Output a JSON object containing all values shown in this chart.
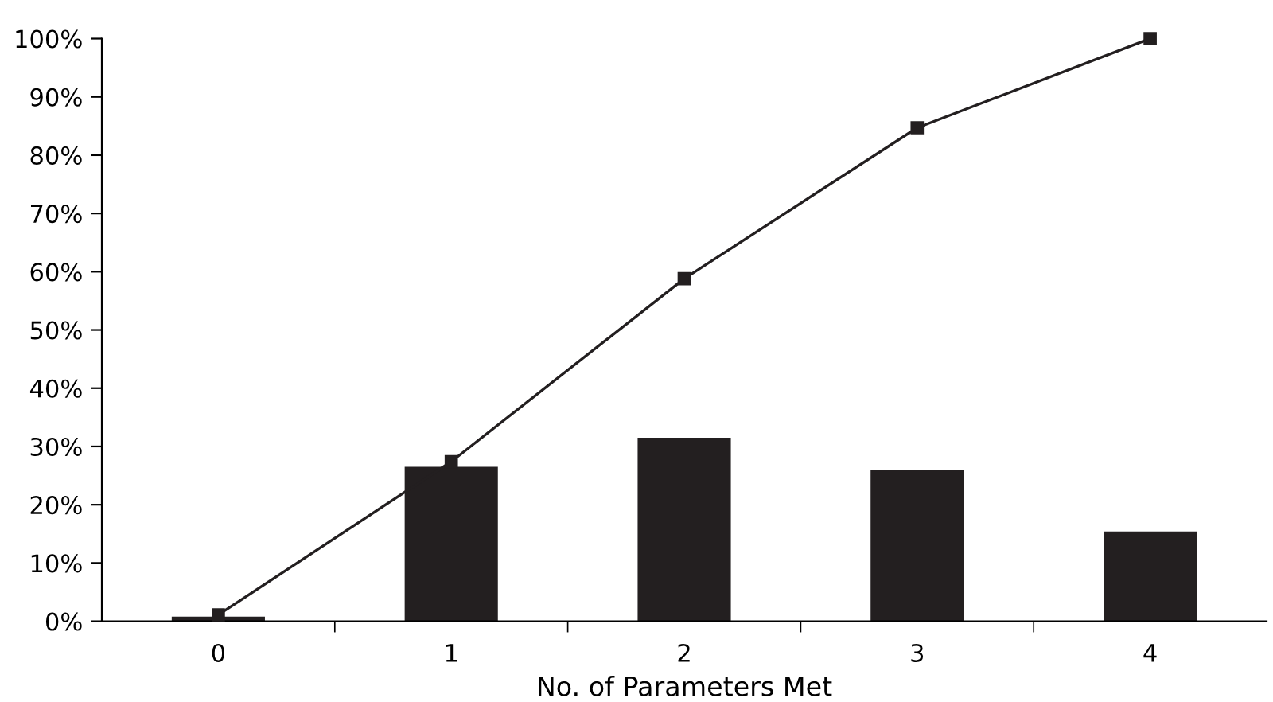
{
  "chart_data": {
    "type": "bar",
    "xlabel": "No. of Parameters Met",
    "categories": [
      "0",
      "1",
      "2",
      "3",
      "4"
    ],
    "series": [
      {
        "color": "#231f20",
        "values": [
          0.8,
          26.5,
          31.5,
          26.0,
          15.4
        ]
      },
      {
        "type": "line",
        "color": "#231f20",
        "values": [
          1.1,
          27.4,
          58.8,
          84.7,
          100
        ],
        "marker": "square",
        "line_style": "solid"
      }
    ],
    "ylim": [
      0,
      100
    ],
    "yticks": [
      {
        "value": 0,
        "label": "0%"
      },
      {
        "value": 10,
        "label": "10%"
      },
      {
        "value": 20,
        "label": "20%"
      },
      {
        "value": 30,
        "label": "30%"
      },
      {
        "value": 40,
        "label": "40%"
      },
      {
        "value": 50,
        "label": "50%"
      },
      {
        "value": 60,
        "label": "60%"
      },
      {
        "value": 70,
        "label": "70%"
      },
      {
        "value": 80,
        "label": "80%"
      },
      {
        "value": 90,
        "label": "90%"
      },
      {
        "value": 100,
        "label": "100%"
      }
    ],
    "grid": false,
    "legend": false
  }
}
